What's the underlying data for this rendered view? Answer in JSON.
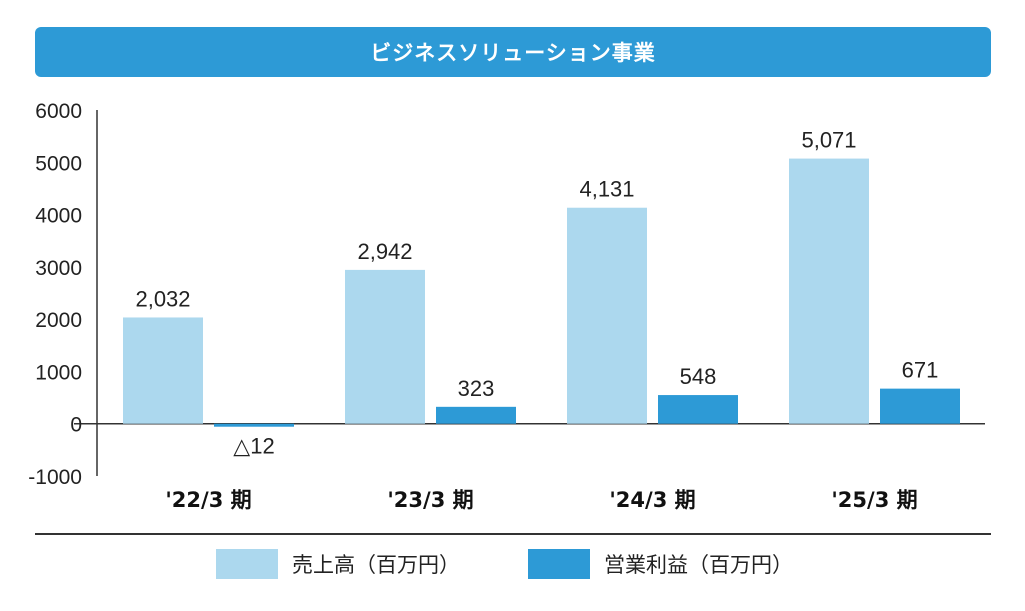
{
  "header": {
    "title": "ビジネスソリューション事業"
  },
  "colors": {
    "title_bg": "#2d9ad6",
    "sales": "#acd8ee",
    "profit": "#2d9ad6",
    "axis": "#333333"
  },
  "chart_data": {
    "type": "bar",
    "categories": [
      "'22/3 期",
      "'23/3 期",
      "'24/3 期",
      "'25/3 期"
    ],
    "series": [
      {
        "name": "売上高（百万円）",
        "values": [
          2032,
          2942,
          4131,
          5071
        ],
        "labels": [
          "2,032",
          "2,942",
          "4,131",
          "5,071"
        ]
      },
      {
        "name": "営業利益（百万円）",
        "values": [
          -12,
          323,
          548,
          671
        ],
        "labels": [
          "△12",
          "323",
          "548",
          "671"
        ]
      }
    ],
    "ylim": [
      -1000,
      6000
    ],
    "yticks": [
      "6000",
      "5000",
      "4000",
      "3000",
      "2000",
      "1000",
      "0",
      "-1000"
    ],
    "grid": false,
    "legend": "bottom"
  }
}
